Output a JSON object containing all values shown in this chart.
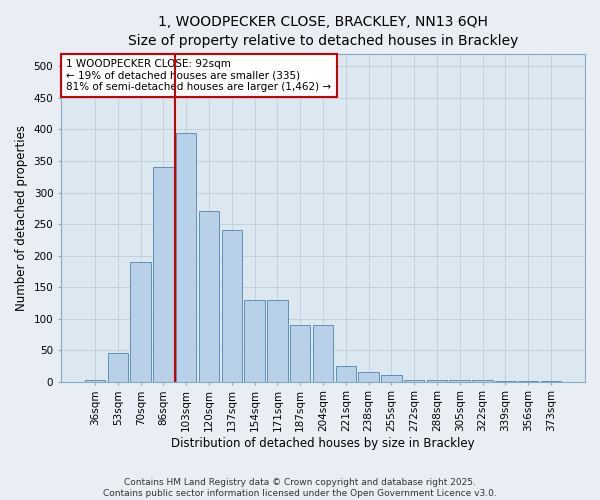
{
  "title_line1": "1, WOODPECKER CLOSE, BRACKLEY, NN13 6QH",
  "title_line2": "Size of property relative to detached houses in Brackley",
  "xlabel": "Distribution of detached houses by size in Brackley",
  "ylabel": "Number of detached properties",
  "categories": [
    "36sqm",
    "53sqm",
    "70sqm",
    "86sqm",
    "103sqm",
    "120sqm",
    "137sqm",
    "154sqm",
    "171sqm",
    "187sqm",
    "204sqm",
    "221sqm",
    "238sqm",
    "255sqm",
    "272sqm",
    "288sqm",
    "305sqm",
    "322sqm",
    "339sqm",
    "356sqm",
    "373sqm"
  ],
  "values": [
    3,
    45,
    190,
    340,
    395,
    270,
    240,
    130,
    130,
    90,
    90,
    25,
    15,
    10,
    3,
    3,
    3,
    2,
    1,
    1,
    1
  ],
  "bar_color": "#b8d0e8",
  "bar_edge_color": "#6090b8",
  "annotation_text": "1 WOODPECKER CLOSE: 92sqm\n← 19% of detached houses are smaller (335)\n81% of semi-detached houses are larger (1,462) →",
  "annotation_box_color": "#ffffff",
  "annotation_box_edge": "#cc0000",
  "vline_color": "#cc0000",
  "vline_bar_index": 3,
  "ylim": [
    0,
    520
  ],
  "yticks": [
    0,
    50,
    100,
    150,
    200,
    250,
    300,
    350,
    400,
    450,
    500
  ],
  "bg_color": "#dce8f0",
  "fig_bg_color": "#e8eef4",
  "footer_text": "Contains HM Land Registry data © Crown copyright and database right 2025.\nContains public sector information licensed under the Open Government Licence v3.0.",
  "title_fontsize": 10,
  "subtitle_fontsize": 9,
  "xlabel_fontsize": 8.5,
  "ylabel_fontsize": 8.5,
  "tick_fontsize": 7.5,
  "annotation_fontsize": 7.5,
  "footer_fontsize": 6.5
}
